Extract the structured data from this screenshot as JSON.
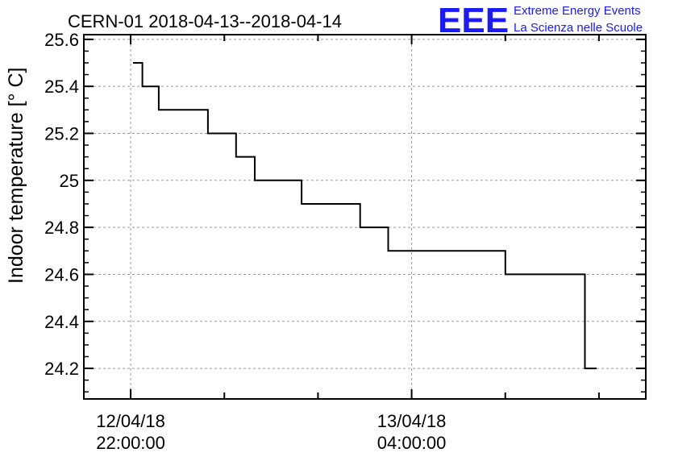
{
  "chart_data": {
    "type": "line",
    "title": "CERN-01 2018-04-13--2018-04-14",
    "xlabel": "",
    "ylabel": "Indoor temperature [° C]",
    "ylim": [
      24.07,
      25.62
    ],
    "y_ticks": [
      "24.2",
      "24.4",
      "24.6",
      "24.8",
      "25",
      "25.2",
      "25.4",
      "25.6"
    ],
    "y_tick_values": [
      24.2,
      24.4,
      24.6,
      24.8,
      25.0,
      25.2,
      25.4,
      25.6
    ],
    "x_ticks": [
      {
        "line1": "12/04/18",
        "line2": "22:00:00",
        "hour": 22
      },
      {
        "line1": "13/04/18",
        "line2": "04:00:00",
        "hour": 28
      }
    ],
    "xlim_hours": [
      21,
      33
    ],
    "x_unit_note": "hours",
    "grid": true,
    "series": [
      {
        "name": "",
        "step": true,
        "x_hours": [
          22.05,
          22.25,
          22.6,
          23.65,
          24.25,
          24.65,
          25.65,
          26.9,
          27.5,
          30.0,
          31.7,
          31.95
        ],
        "values": [
          25.5,
          25.4,
          25.3,
          25.2,
          25.1,
          25.0,
          24.9,
          24.8,
          24.7,
          24.6,
          24.2,
          24.2
        ]
      }
    ]
  },
  "logo": {
    "letters": "EEE",
    "line1": "Extreme Energy Events",
    "line2": "La Scienza nelle Scuole",
    "color": "#1a1aff"
  }
}
